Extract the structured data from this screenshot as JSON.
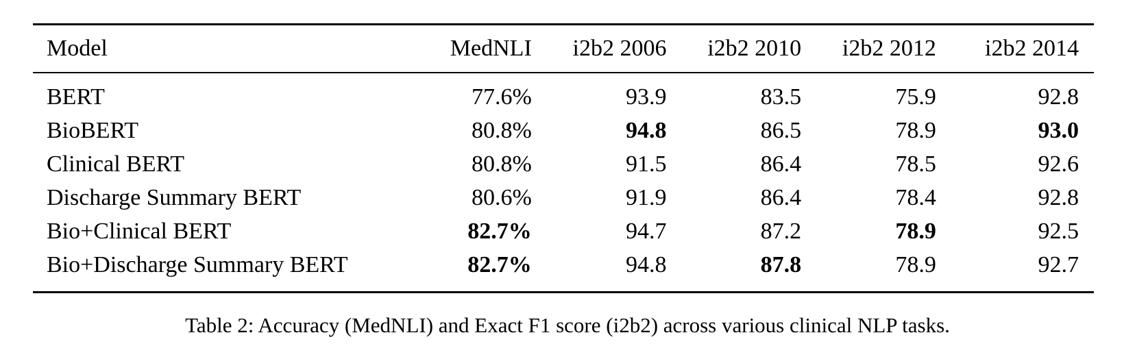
{
  "table": {
    "headers": [
      "Model",
      "MedNLI",
      "i2b2 2006",
      "i2b2 2010",
      "i2b2 2012",
      "i2b2 2014"
    ],
    "rows": [
      {
        "model": "BERT",
        "values": [
          "77.6%",
          "93.9",
          "83.5",
          "75.9",
          "92.8"
        ],
        "bold": [
          false,
          false,
          false,
          false,
          false
        ]
      },
      {
        "model": "BioBERT",
        "values": [
          "80.8%",
          "94.8",
          "86.5",
          "78.9",
          "93.0"
        ],
        "bold": [
          false,
          true,
          false,
          false,
          true
        ]
      },
      {
        "model": "Clinical BERT",
        "values": [
          "80.8%",
          "91.5",
          "86.4",
          "78.5",
          "92.6"
        ],
        "bold": [
          false,
          false,
          false,
          false,
          false
        ]
      },
      {
        "model": "Discharge Summary BERT",
        "values": [
          "80.6%",
          "91.9",
          "86.4",
          "78.4",
          "92.8"
        ],
        "bold": [
          false,
          false,
          false,
          false,
          false
        ]
      },
      {
        "model": "Bio+Clinical BERT",
        "values": [
          "82.7%",
          "94.7",
          "87.2",
          "78.9",
          "92.5"
        ],
        "bold": [
          true,
          false,
          false,
          true,
          false
        ]
      },
      {
        "model": "Bio+Discharge Summary BERT",
        "values": [
          "82.7%",
          "94.8",
          "87.8",
          "78.9",
          "92.7"
        ],
        "bold": [
          true,
          false,
          true,
          false,
          false
        ]
      }
    ]
  },
  "caption": "Table 2: Accuracy (MedNLI) and Exact F1 score (i2b2) across various clinical NLP tasks."
}
